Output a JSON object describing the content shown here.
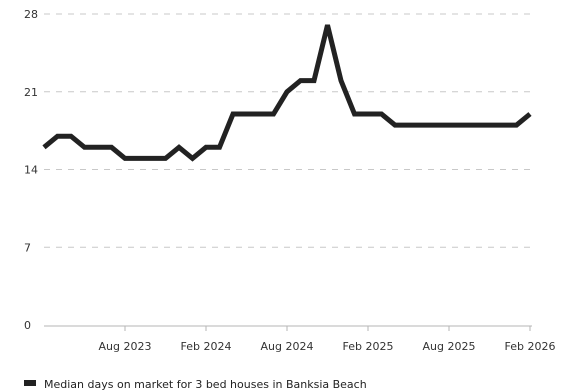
{
  "chart_data": {
    "type": "line",
    "title": "",
    "xlabel": "",
    "ylabel": "",
    "ylim": [
      0,
      28
    ],
    "yticks": [
      "0",
      "7",
      "14",
      "21",
      "28"
    ],
    "xtick_labels": [
      "Aug 2023",
      "Feb 2024",
      "Aug 2024",
      "Feb 2025",
      "Aug 2025",
      "Feb 2026"
    ],
    "grid": "horizontal dashed",
    "legend_position": "bottom-left",
    "series": [
      {
        "name": "Median days on market for 3 bed houses in Banksia Beach",
        "color": "#222222",
        "x": [
          "Feb 2023",
          "Mar 2023",
          "Apr 2023",
          "May 2023",
          "Jun 2023",
          "Jul 2023",
          "Aug 2023",
          "Sep 2023",
          "Oct 2023",
          "Nov 2023",
          "Dec 2023",
          "Jan 2024",
          "Feb 2024",
          "Mar 2024",
          "Apr 2024",
          "May 2024",
          "Jun 2024",
          "Jul 2024",
          "Aug 2024",
          "Sep 2024",
          "Oct 2024",
          "Nov 2024",
          "Dec 2024",
          "Jan 2025",
          "Feb 2025",
          "Mar 2025",
          "Apr 2025",
          "May 2025",
          "Jun 2025",
          "Jul 2025",
          "Aug 2025",
          "Sep 2025",
          "Oct 2025",
          "Nov 2025",
          "Dec 2025",
          "Jan 2026",
          "Feb 2026"
        ],
        "values": [
          16,
          17,
          17,
          16,
          16,
          16,
          15,
          15,
          15,
          15,
          16,
          15,
          16,
          16,
          19,
          19,
          19,
          19,
          21,
          22,
          22,
          27,
          22,
          19,
          19,
          19,
          18,
          18,
          18,
          18,
          18,
          18,
          18,
          18,
          18,
          18,
          19
        ]
      }
    ]
  }
}
